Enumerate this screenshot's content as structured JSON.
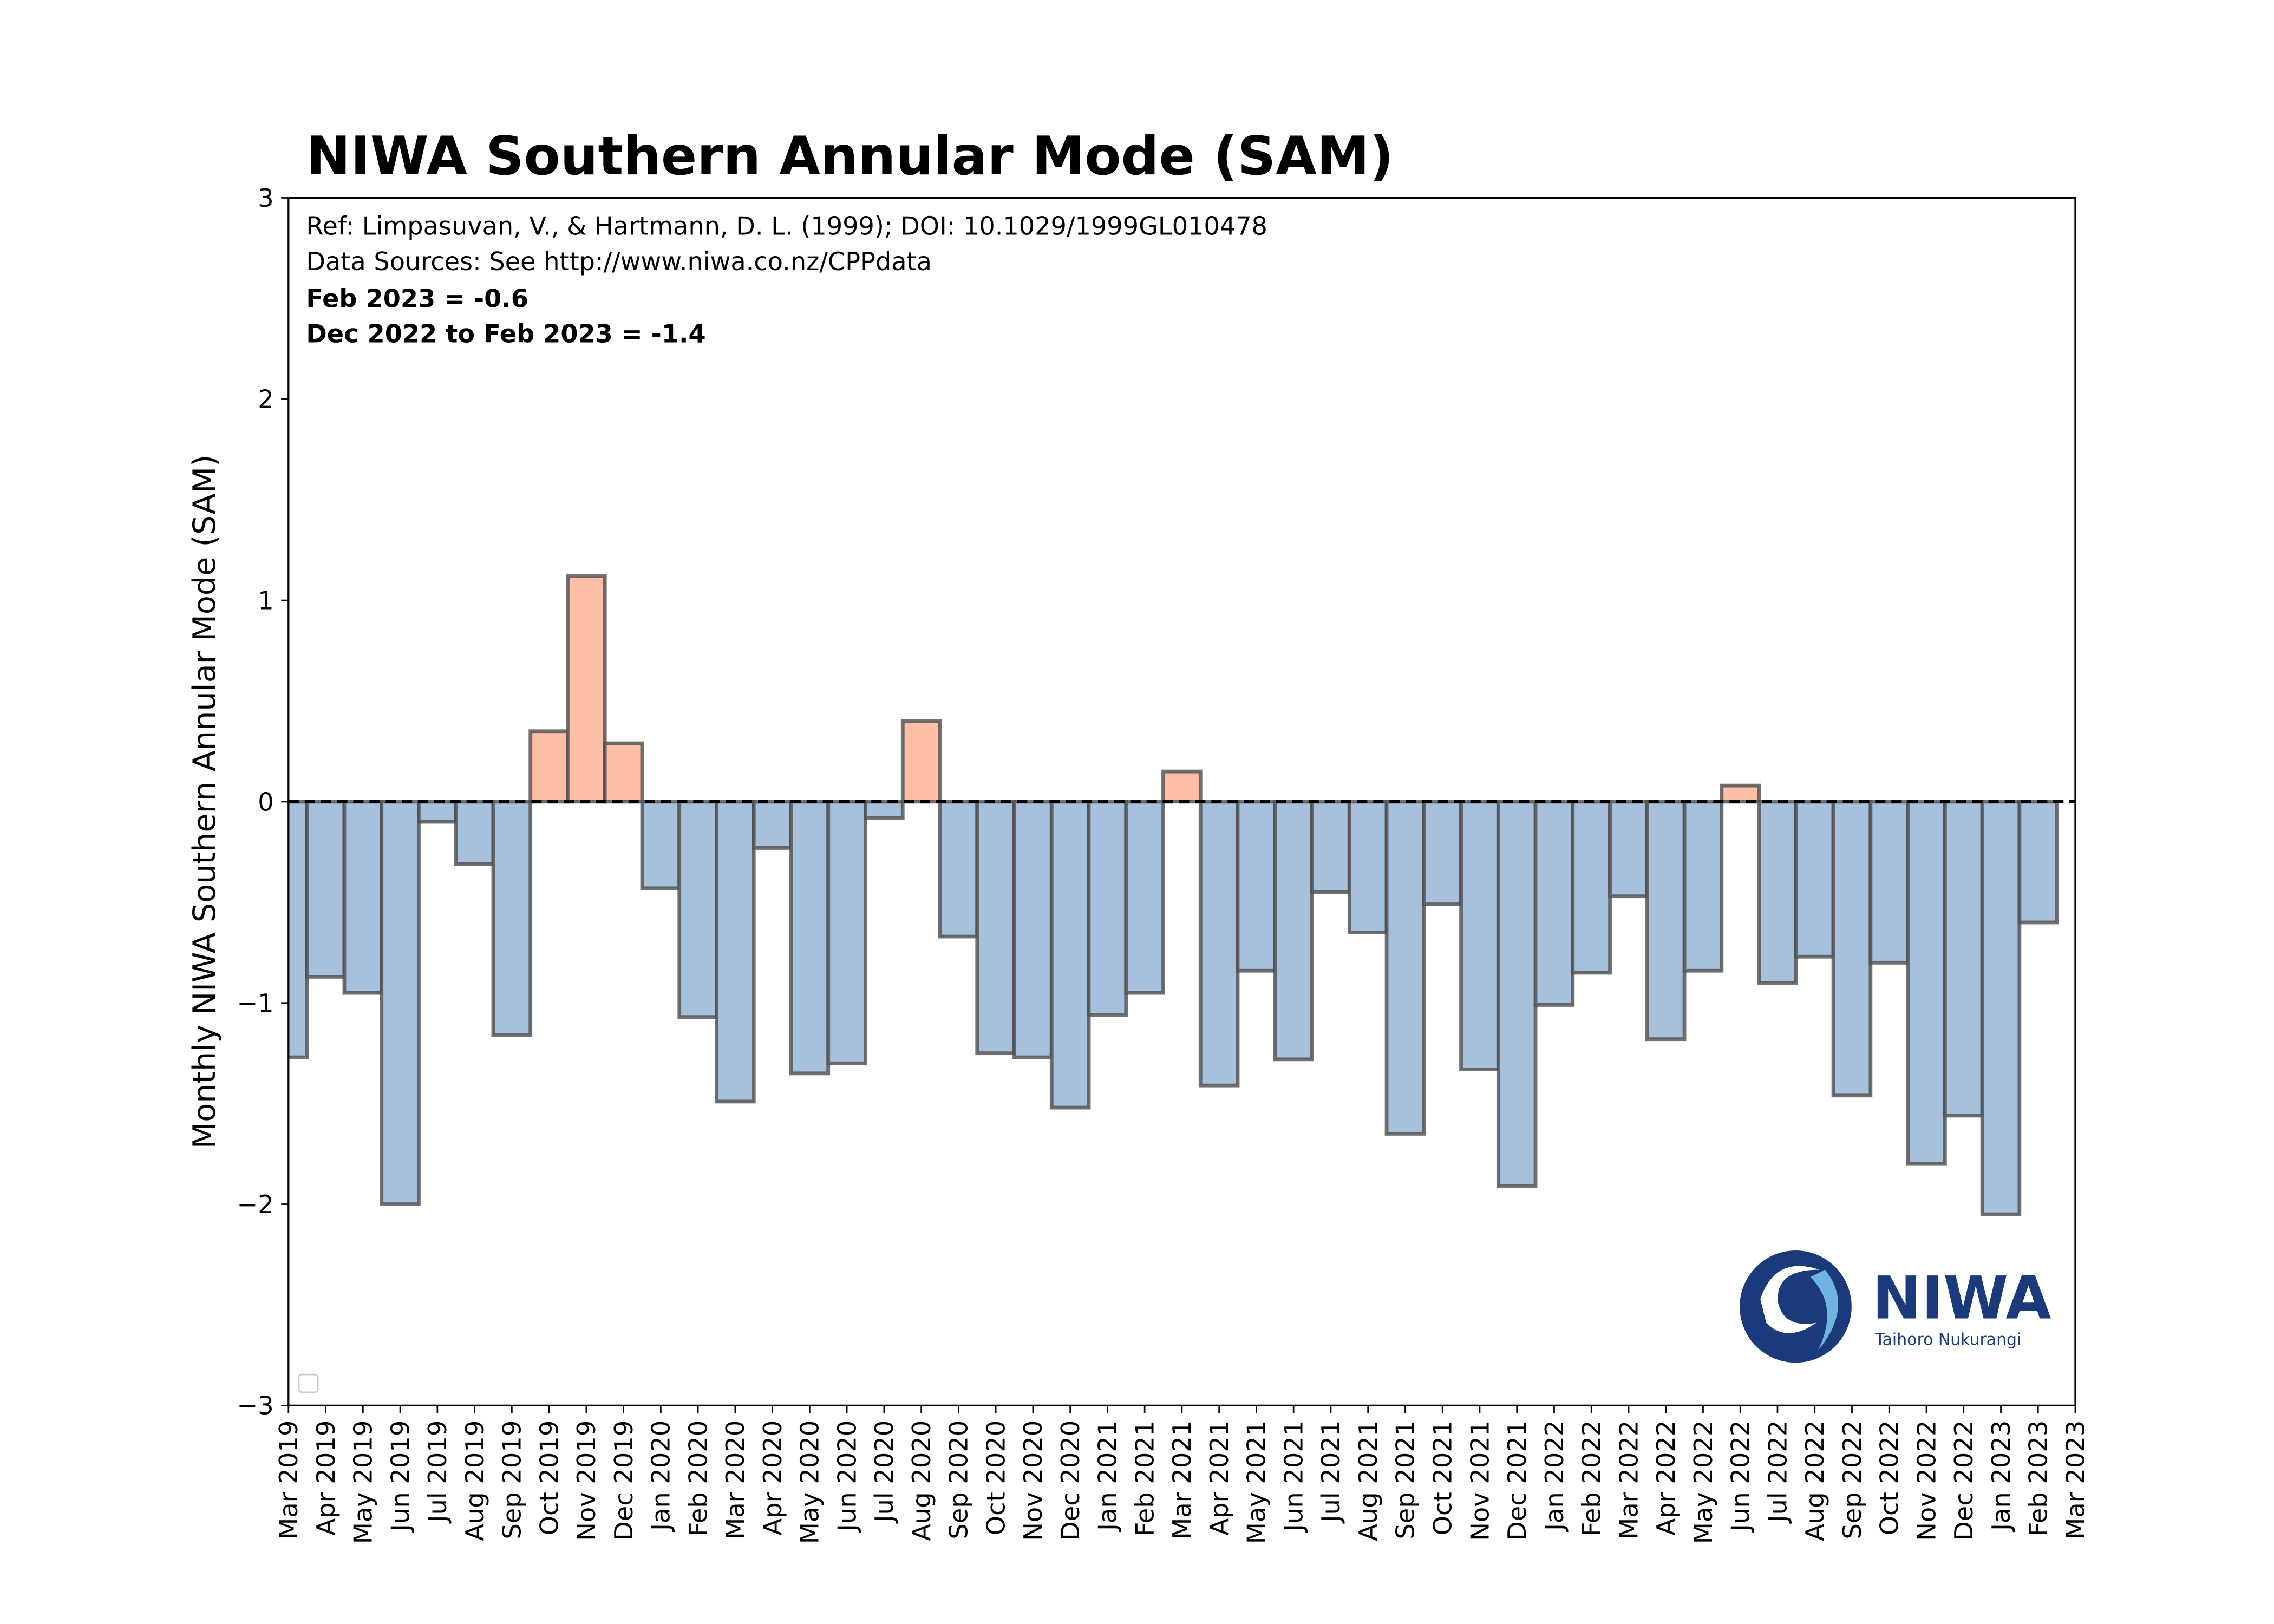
{
  "chart_data": {
    "type": "bar",
    "title": "NIWA Southern Annular Mode (SAM)",
    "annotations": [
      "Ref: Limpasuvan, V., & Hartmann, D. L. (1999); DOI: 10.1029/1999GL010478",
      "Data Sources: See http://www.niwa.co.nz/CPPdata"
    ],
    "bold_annotations": [
      "Feb 2023 = -0.6",
      "Dec 2022 to Feb 2023 = -1.4"
    ],
    "ylabel": "Monthly NIWA Southern Annular Mode (SAM)",
    "logo": {
      "name": "NIWA",
      "subtitle": "Taihoro Nukurangi"
    },
    "x": [
      "Mar 2019",
      "Apr 2019",
      "May 2019",
      "Jun 2019",
      "Jul 2019",
      "Aug 2019",
      "Sep 2019",
      "Oct 2019",
      "Nov 2019",
      "Dec 2019",
      "Jan 2020",
      "Feb 2020",
      "Mar 2020",
      "Apr 2020",
      "May 2020",
      "Jun 2020",
      "Jul 2020",
      "Aug 2020",
      "Sep 2020",
      "Oct 2020",
      "Nov 2020",
      "Dec 2020",
      "Jan 2021",
      "Feb 2021",
      "Mar 2021",
      "Apr 2021",
      "May 2021",
      "Jun 2021",
      "Jul 2021",
      "Aug 2021",
      "Sep 2021",
      "Oct 2021",
      "Nov 2021",
      "Dec 2021",
      "Jan 2022",
      "Feb 2022",
      "Mar 2022",
      "Apr 2022",
      "May 2022",
      "Jun 2022",
      "Jul 2022",
      "Aug 2022",
      "Sep 2022",
      "Oct 2022",
      "Nov 2022",
      "Dec 2022",
      "Jan 2023",
      "Feb 2023"
    ],
    "values": [
      -1.27,
      -0.87,
      -0.95,
      -2.0,
      -0.1,
      -0.31,
      -1.16,
      0.35,
      1.12,
      0.29,
      -0.43,
      -1.07,
      -1.49,
      -0.23,
      -1.35,
      -1.3,
      -0.08,
      0.4,
      -0.67,
      -1.25,
      -1.27,
      -1.52,
      -1.06,
      -0.95,
      0.15,
      -1.41,
      -0.84,
      -1.28,
      -0.45,
      -0.65,
      -1.65,
      -0.51,
      -1.33,
      -1.91,
      -1.01,
      -0.85,
      -0.47,
      -1.18,
      -0.84,
      0.08,
      -0.9,
      -0.77,
      -1.46,
      -0.8,
      -1.8,
      -1.56,
      -2.05,
      -0.6
    ],
    "positive_color": "#fdbfa6",
    "negative_color": "#a7c0db",
    "edge_color": "#4d4d4d",
    "xlim": [
      "Mar 2019",
      "Mar 2023"
    ],
    "xticks": [
      "Mar 2019",
      "Apr 2019",
      "May 2019",
      "Jun 2019",
      "Jul 2019",
      "Aug 2019",
      "Sep 2019",
      "Oct 2019",
      "Nov 2019",
      "Dec 2019",
      "Jan 2020",
      "Feb 2020",
      "Mar 2020",
      "Apr 2020",
      "May 2020",
      "Jun 2020",
      "Jul 2020",
      "Aug 2020",
      "Sep 2020",
      "Oct 2020",
      "Nov 2020",
      "Dec 2020",
      "Jan 2021",
      "Feb 2021",
      "Mar 2021",
      "Apr 2021",
      "May 2021",
      "Jun 2021",
      "Jul 2021",
      "Aug 2021",
      "Sep 2021",
      "Oct 2021",
      "Nov 2021",
      "Dec 2021",
      "Jan 2022",
      "Feb 2022",
      "Mar 2022",
      "Apr 2022",
      "May 2022",
      "Jun 2022",
      "Jul 2022",
      "Aug 2022",
      "Sep 2022",
      "Oct 2022",
      "Nov 2022",
      "Dec 2022",
      "Jan 2023",
      "Feb 2023",
      "Mar 2023"
    ],
    "ylim": [
      -3,
      3
    ],
    "yticks": [
      {
        "value": -3,
        "label": "−3"
      },
      {
        "value": -2,
        "label": "−2"
      },
      {
        "value": -1,
        "label": "−1"
      },
      0,
      1,
      2,
      3
    ],
    "grid": false
  }
}
